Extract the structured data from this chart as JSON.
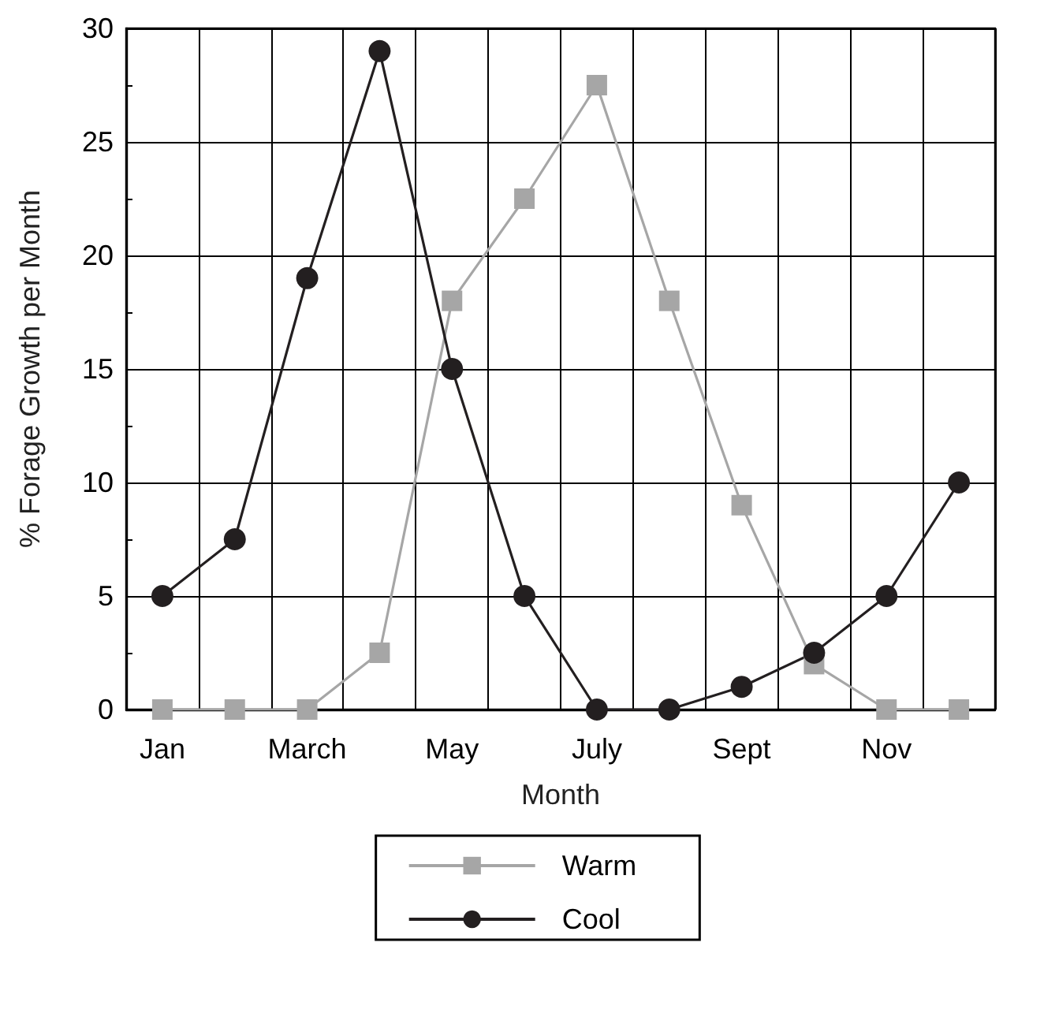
{
  "chart_data": {
    "type": "line",
    "xlabel": "Month",
    "ylabel": "% Forage Growth per Month",
    "categories": [
      "Jan",
      null,
      "March",
      null,
      "May",
      null,
      "July",
      null,
      "Sept",
      null,
      "Nov",
      null
    ],
    "series": [
      {
        "name": "Warm",
        "color": "#a6a6a6",
        "marker": "square",
        "values": [
          0,
          0,
          0,
          2.5,
          18,
          22.5,
          27.5,
          18,
          9,
          2,
          0,
          0
        ]
      },
      {
        "name": "Cool",
        "color": "#231f20",
        "marker": "circle",
        "values": [
          5,
          7.5,
          19,
          29,
          15,
          5,
          0,
          0,
          1,
          2.5,
          5,
          10
        ]
      }
    ],
    "ylim": [
      0,
      30
    ],
    "yticks": [
      0,
      5,
      10,
      15,
      20,
      25,
      30
    ],
    "grid": true,
    "legend": "bottom",
    "line_style": "solid"
  }
}
